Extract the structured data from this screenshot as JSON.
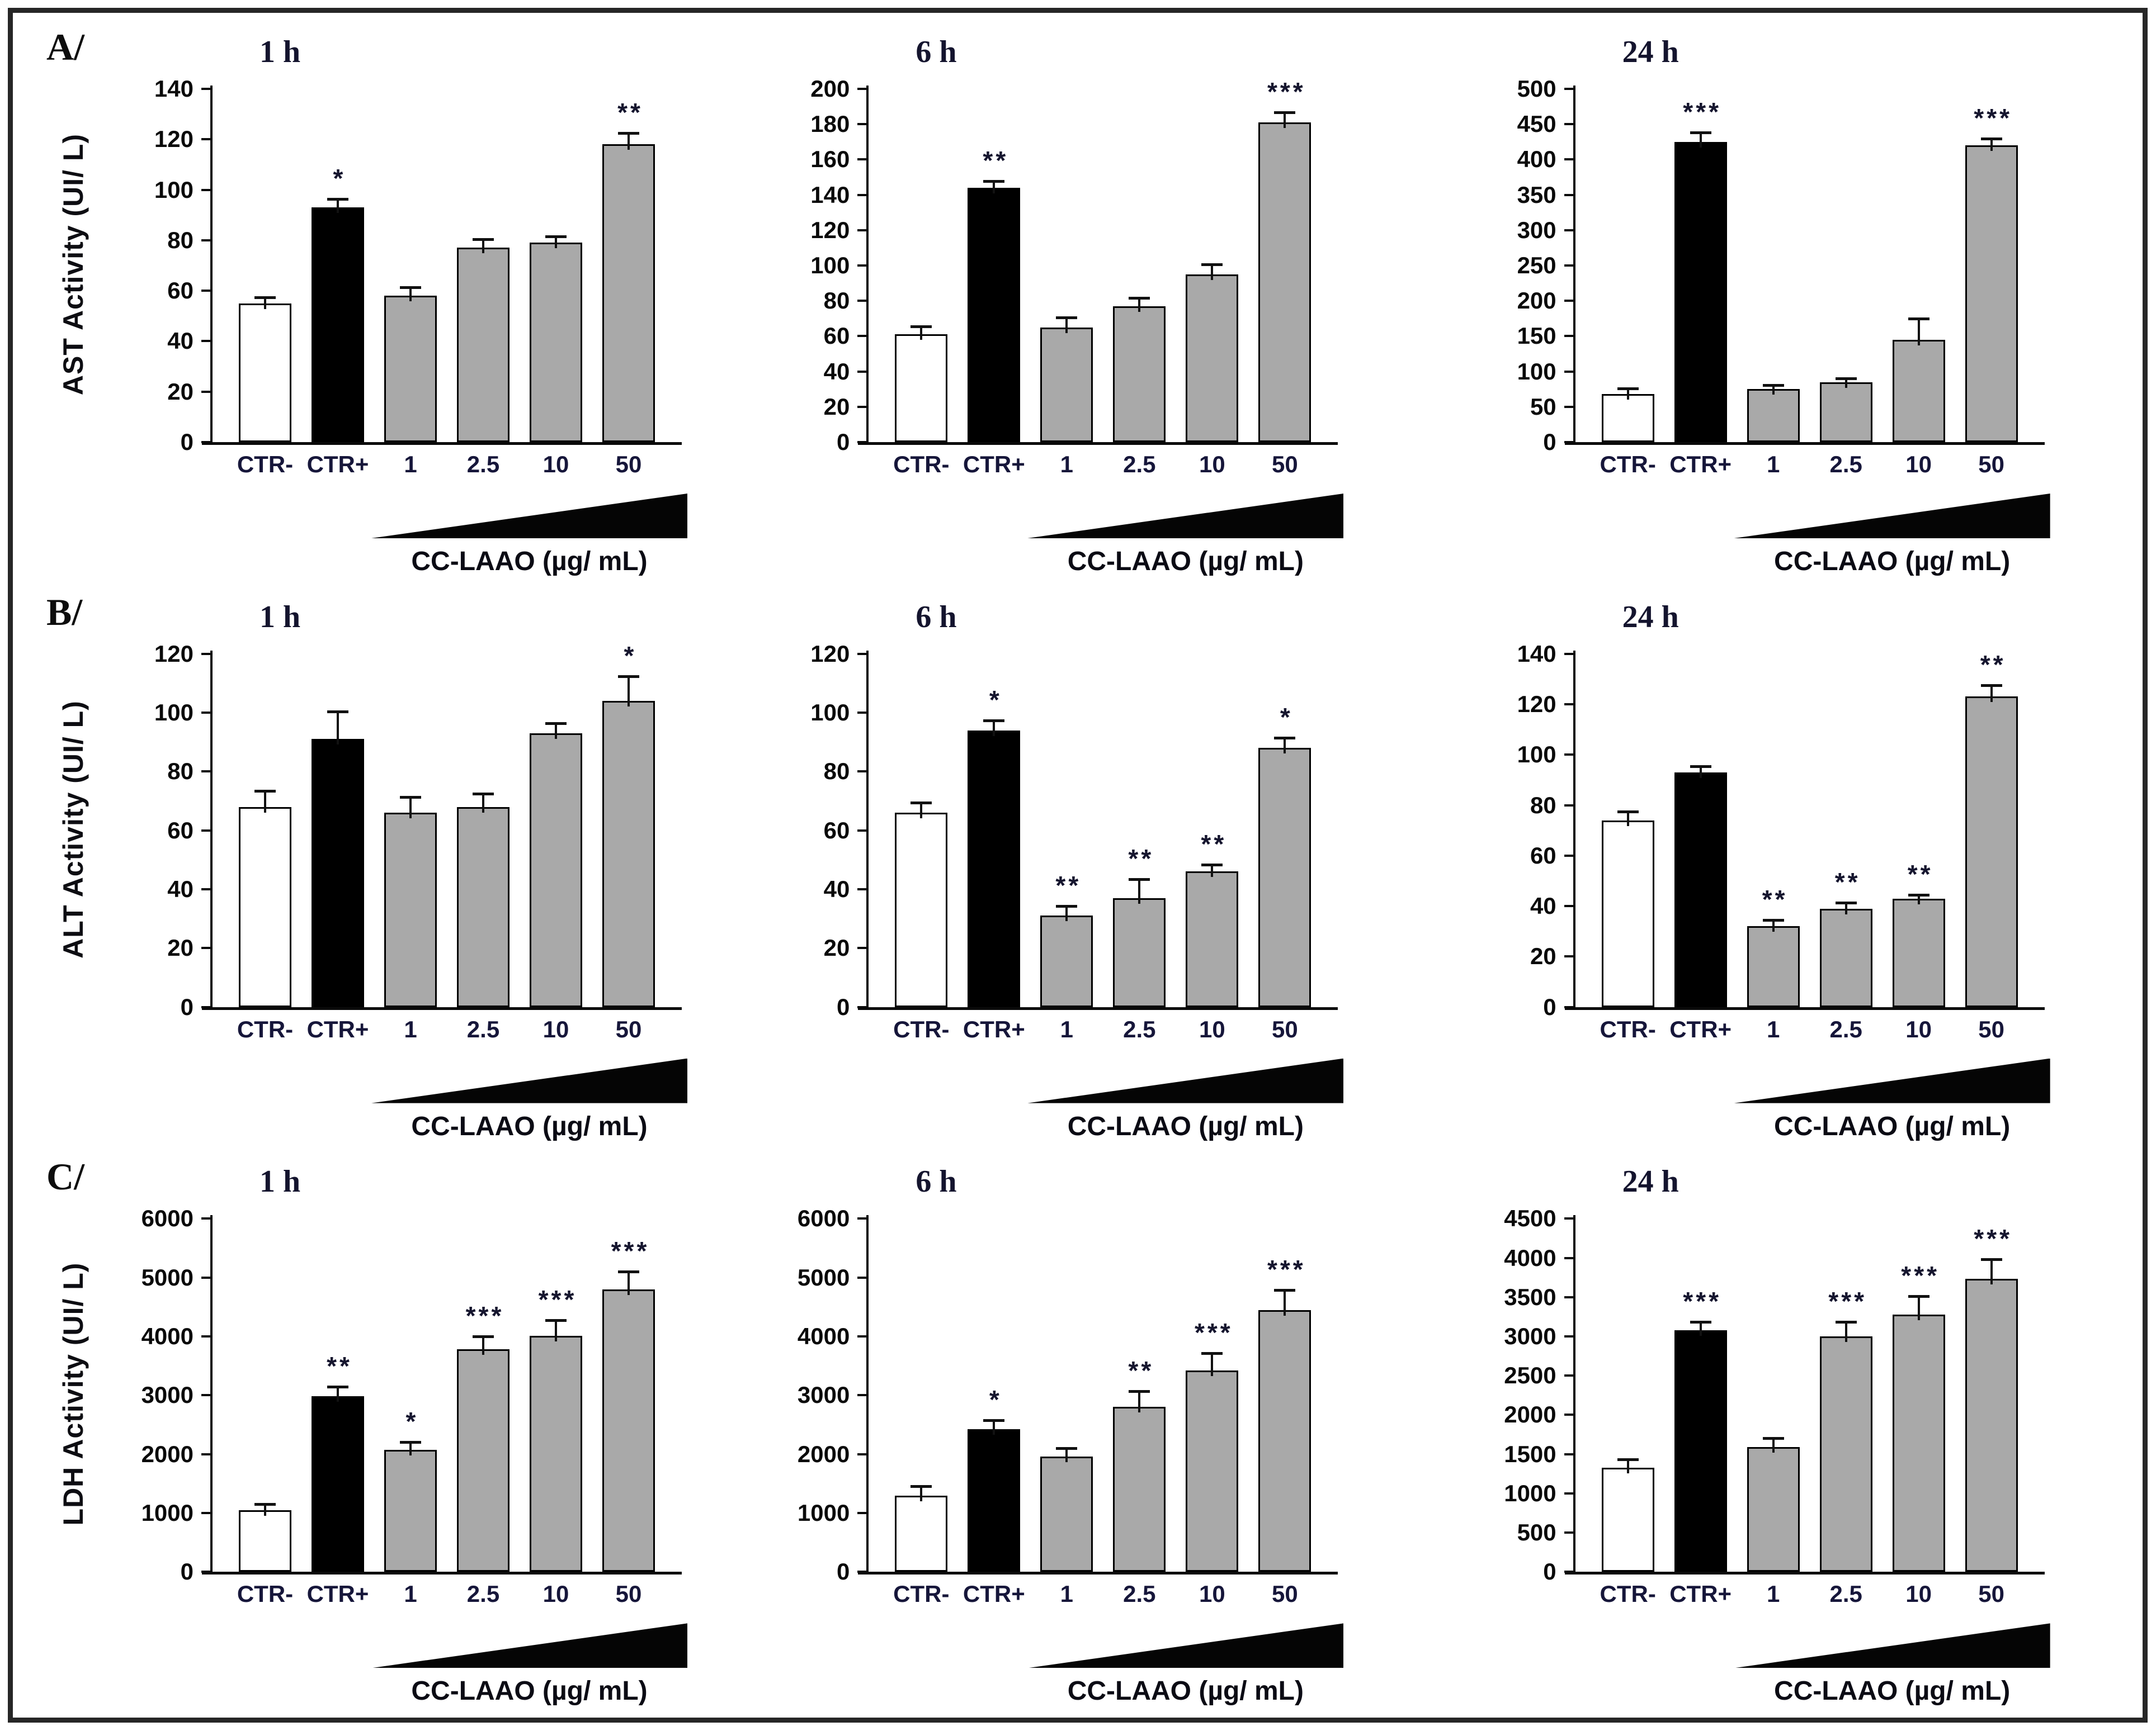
{
  "figure": {
    "panels": [
      {
        "label": "A/",
        "ylabel": "AST Activity (UI/ L)"
      },
      {
        "label": "B/",
        "ylabel": "ALT Activity (UI/ L)"
      },
      {
        "label": "C/",
        "ylabel": "LDH Activity (UI/ L)"
      }
    ],
    "x_axis_title": "CC-LAAO (µg/ mL)",
    "categories": [
      "CTR-",
      "CTR+",
      "1",
      "2.5",
      "10",
      "50"
    ],
    "colors": {
      "bar_ctr_negative": "#ffffff",
      "bar_ctr_positive": "#000000",
      "bar_dose_gray": "#a9a9a9",
      "bar_border": "#000000",
      "wedge_black": "#050505",
      "label_navy": "#16163a",
      "tick_black": "#0a0a0a"
    }
  },
  "chart_data": [
    {
      "type": "bar",
      "panel": "A",
      "title": "1 h",
      "ylabel": "AST Activity (UI/ L)",
      "categories": [
        "CTR-",
        "CTR+",
        "1",
        "2.5",
        "10",
        "50"
      ],
      "values": [
        55,
        93,
        58,
        77,
        79,
        118
      ],
      "errors": [
        2,
        3,
        3,
        3,
        2,
        4
      ],
      "stars": [
        "",
        "*",
        "",
        "",
        "",
        "**"
      ],
      "ylim": [
        0,
        140
      ],
      "yticks": [
        0,
        20,
        40,
        60,
        80,
        100,
        120,
        140
      ],
      "xlabel": "CC-LAAO (µg/ mL)"
    },
    {
      "type": "bar",
      "panel": "A",
      "title": "6 h",
      "ylabel": "AST Activity (UI/ L)",
      "categories": [
        "CTR-",
        "CTR+",
        "1",
        "2.5",
        "10",
        "50"
      ],
      "values": [
        61,
        144,
        65,
        77,
        95,
        181
      ],
      "errors": [
        4,
        3,
        5,
        4,
        5,
        5
      ],
      "stars": [
        "",
        "**",
        "",
        "",
        "",
        "***"
      ],
      "ylim": [
        0,
        200
      ],
      "yticks": [
        0,
        20,
        40,
        60,
        80,
        100,
        120,
        140,
        160,
        180,
        200
      ],
      "xlabel": "CC-LAAO (µg/ mL)"
    },
    {
      "type": "bar",
      "panel": "A",
      "title": "24 h",
      "ylabel": "AST Activity (UI/ L)",
      "categories": [
        "CTR-",
        "CTR+",
        "1",
        "2.5",
        "10",
        "50"
      ],
      "values": [
        68,
        425,
        75,
        85,
        145,
        420
      ],
      "errors": [
        6,
        12,
        4,
        4,
        28,
        8
      ],
      "stars": [
        "",
        "***",
        "",
        "",
        "",
        "***"
      ],
      "ylim": [
        0,
        500
      ],
      "yticks": [
        0,
        50,
        100,
        150,
        200,
        250,
        300,
        350,
        400,
        450,
        500
      ],
      "xlabel": "CC-LAAO (µg/ mL)"
    },
    {
      "type": "bar",
      "panel": "B",
      "title": "1 h",
      "ylabel": "ALT Activity (UI/ L)",
      "categories": [
        "CTR-",
        "CTR+",
        "1",
        "2.5",
        "10",
        "50"
      ],
      "values": [
        68,
        91,
        66,
        68,
        93,
        104
      ],
      "errors": [
        5,
        9,
        5,
        4,
        3,
        8
      ],
      "stars": [
        "",
        "",
        "",
        "",
        "",
        "*"
      ],
      "ylim": [
        0,
        120
      ],
      "yticks": [
        0,
        20,
        40,
        60,
        80,
        100,
        120
      ],
      "xlabel": "CC-LAAO (µg/ mL)"
    },
    {
      "type": "bar",
      "panel": "B",
      "title": "6 h",
      "ylabel": "ALT Activity (UI/ L)",
      "categories": [
        "CTR-",
        "CTR+",
        "1",
        "2.5",
        "10",
        "50"
      ],
      "values": [
        66,
        94,
        31,
        37,
        46,
        88
      ],
      "errors": [
        3,
        3,
        3,
        6,
        2,
        3
      ],
      "stars": [
        "",
        "*",
        "**",
        "**",
        "**",
        "*"
      ],
      "ylim": [
        0,
        120
      ],
      "yticks": [
        0,
        20,
        40,
        60,
        80,
        100,
        120
      ],
      "xlabel": "CC-LAAO (µg/ mL)"
    },
    {
      "type": "bar",
      "panel": "B",
      "title": "24 h",
      "ylabel": "ALT Activity (UI/ L)",
      "categories": [
        "CTR-",
        "CTR+",
        "1",
        "2.5",
        "10",
        "50"
      ],
      "values": [
        74,
        93,
        32,
        39,
        43,
        123
      ],
      "errors": [
        3,
        2,
        2,
        2,
        1,
        4
      ],
      "stars": [
        "",
        "",
        "**",
        "**",
        "**",
        "**"
      ],
      "ylim": [
        0,
        140
      ],
      "yticks": [
        0,
        20,
        40,
        60,
        80,
        100,
        120,
        140
      ],
      "xlabel": "CC-LAAO (µg/ mL)"
    },
    {
      "type": "bar",
      "panel": "C",
      "title": "1 h",
      "ylabel": "LDH Activity (UI/ L)",
      "categories": [
        "CTR-",
        "CTR+",
        "1",
        "2.5",
        "10",
        "50"
      ],
      "values": [
        1050,
        2980,
        2070,
        3780,
        4010,
        4800
      ],
      "errors": [
        80,
        150,
        120,
        200,
        250,
        280
      ],
      "stars": [
        "",
        "**",
        "*",
        "***",
        "***",
        "***"
      ],
      "ylim": [
        0,
        6000
      ],
      "yticks": [
        0,
        1000,
        2000,
        3000,
        4000,
        5000,
        6000
      ],
      "xlabel": "CC-LAAO (µg/ mL)"
    },
    {
      "type": "bar",
      "panel": "C",
      "title": "6 h",
      "ylabel": "LDH Activity (UI/ L)",
      "categories": [
        "CTR-",
        "CTR+",
        "1",
        "2.5",
        "10",
        "50"
      ],
      "values": [
        1290,
        2420,
        1960,
        2800,
        3420,
        4450
      ],
      "errors": [
        150,
        140,
        120,
        250,
        280,
        320
      ],
      "stars": [
        "",
        "*",
        "",
        "**",
        "***",
        "***"
      ],
      "ylim": [
        0,
        6000
      ],
      "yticks": [
        0,
        1000,
        2000,
        3000,
        4000,
        5000,
        6000
      ],
      "xlabel": "CC-LAAO (µg/ mL)"
    },
    {
      "type": "bar",
      "panel": "C",
      "title": "24 h",
      "ylabel": "LDH Activity (UI/ L)",
      "categories": [
        "CTR-",
        "CTR+",
        "1",
        "2.5",
        "10",
        "50"
      ],
      "values": [
        1330,
        3080,
        1590,
        3000,
        3280,
        3730
      ],
      "errors": [
        90,
        90,
        100,
        170,
        220,
        240
      ],
      "stars": [
        "",
        "***",
        "",
        "***",
        "***",
        "***"
      ],
      "ylim": [
        0,
        4500
      ],
      "yticks": [
        0,
        500,
        1000,
        1500,
        2000,
        2500,
        3000,
        3500,
        4000,
        4500
      ],
      "xlabel": "CC-LAAO (µg/ mL)"
    }
  ]
}
